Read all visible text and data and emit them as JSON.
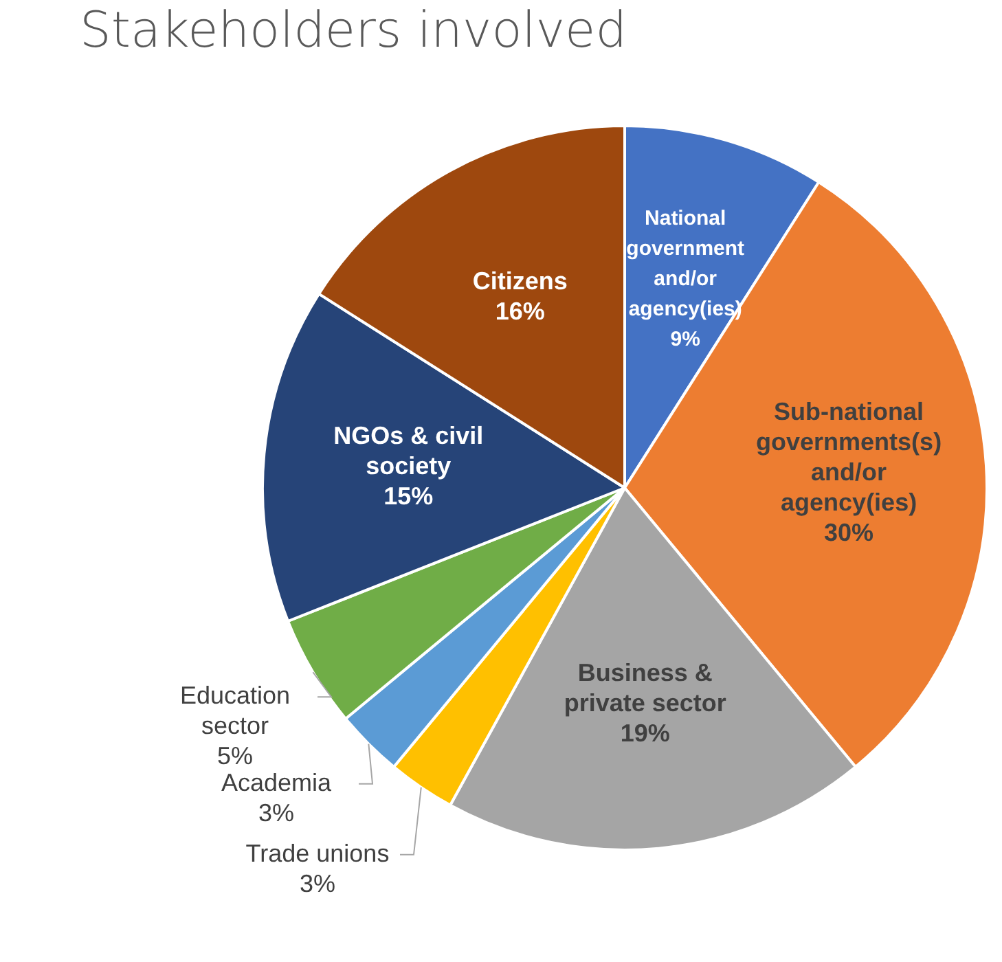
{
  "chart_data": {
    "type": "pie",
    "title": "Stakeholders involved",
    "categories": [
      "National government and/or agency(ies)",
      "Sub-national governments(s) and/or agency(ies)",
      "Business & private sector",
      "Trade unions",
      "Academia",
      "Education sector",
      "NGOs & civil society",
      "Citizens"
    ],
    "values": [
      9,
      30,
      19,
      3,
      3,
      5,
      15,
      16
    ],
    "colors": [
      "#4472c4",
      "#ed7d31",
      "#a5a5a5",
      "#ffc000",
      "#5b9bd5",
      "#70ad47",
      "#264478",
      "#9e480e"
    ],
    "value_labels": [
      "9%",
      "30%",
      "19%",
      "3%",
      "3%",
      "5%",
      "15%",
      "16%"
    ],
    "legend": false
  }
}
